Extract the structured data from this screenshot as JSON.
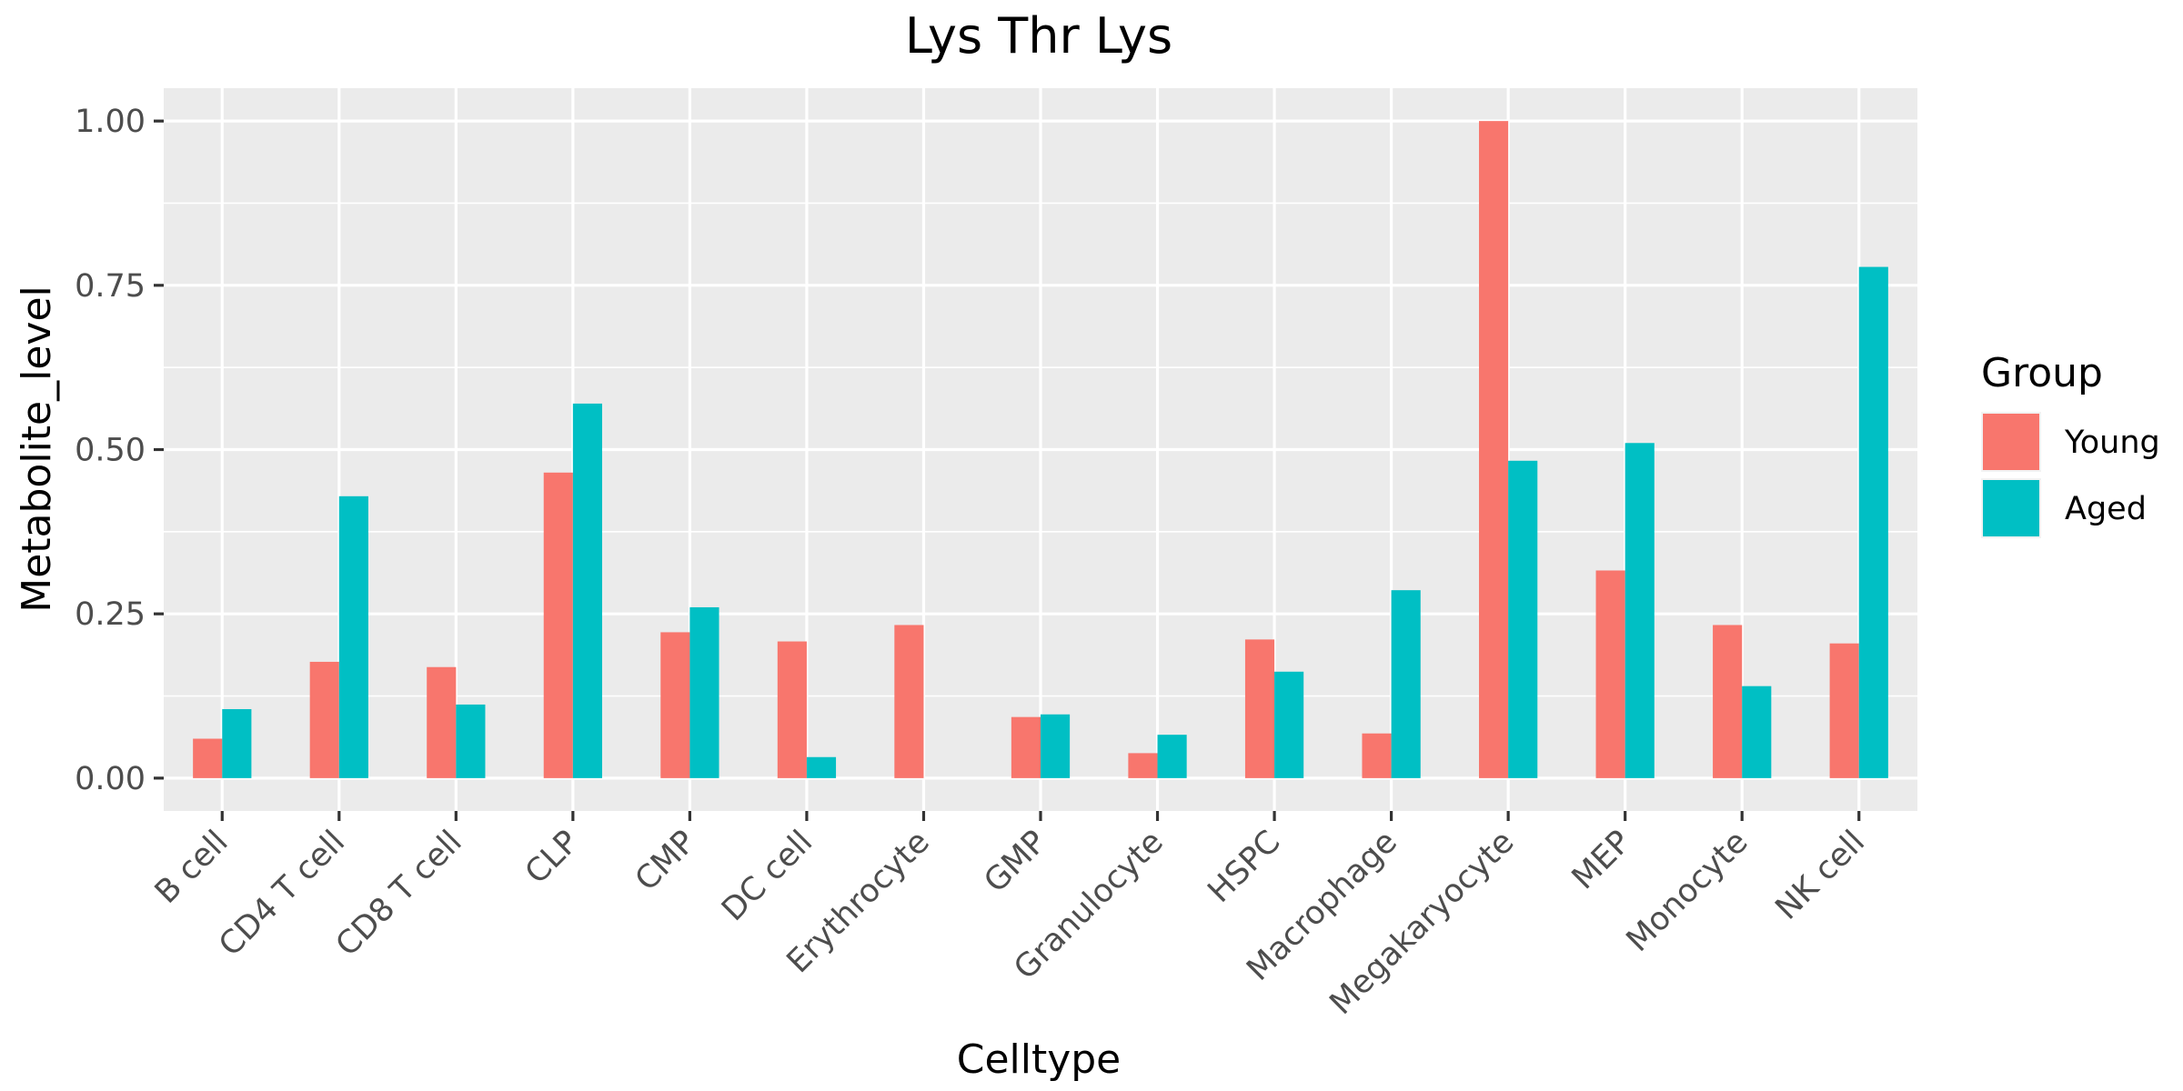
{
  "chart_data": {
    "type": "bar",
    "title": "Lys Thr Lys",
    "xlabel": "Celltype",
    "ylabel": "Metabolite_level",
    "ylim": [
      -0.05,
      1.05
    ],
    "yticks": [
      0.0,
      0.25,
      0.5,
      0.75,
      1.0
    ],
    "ytick_labels": [
      "0.00",
      "0.25",
      "0.50",
      "0.75",
      "1.00"
    ],
    "categories": [
      "B cell",
      "CD4 T cell",
      "CD8 T cell",
      "CLP",
      "CMP",
      "DC cell",
      "Erythrocyte",
      "GMP",
      "Granulocyte",
      "HSPC",
      "Macrophage",
      "Megakaryocyte",
      "MEP",
      "Monocyte",
      "NK cell"
    ],
    "series": [
      {
        "name": "Young",
        "color": "#F8766D",
        "values": [
          0.06,
          0.177,
          0.169,
          0.465,
          0.222,
          0.208,
          0.233,
          0.093,
          0.038,
          0.211,
          0.068,
          1.0,
          0.316,
          0.233,
          0.205
        ]
      },
      {
        "name": "Aged",
        "color": "#00BFC4",
        "values": [
          0.105,
          0.429,
          0.112,
          0.57,
          0.26,
          0.032,
          0.0,
          0.097,
          0.066,
          0.162,
          0.286,
          0.483,
          0.51,
          0.14,
          0.778
        ]
      }
    ],
    "legend": {
      "title": "Group",
      "position": "right"
    },
    "grid": true,
    "panel_background": "#EBEBEB",
    "grid_color": "#FFFFFF"
  }
}
